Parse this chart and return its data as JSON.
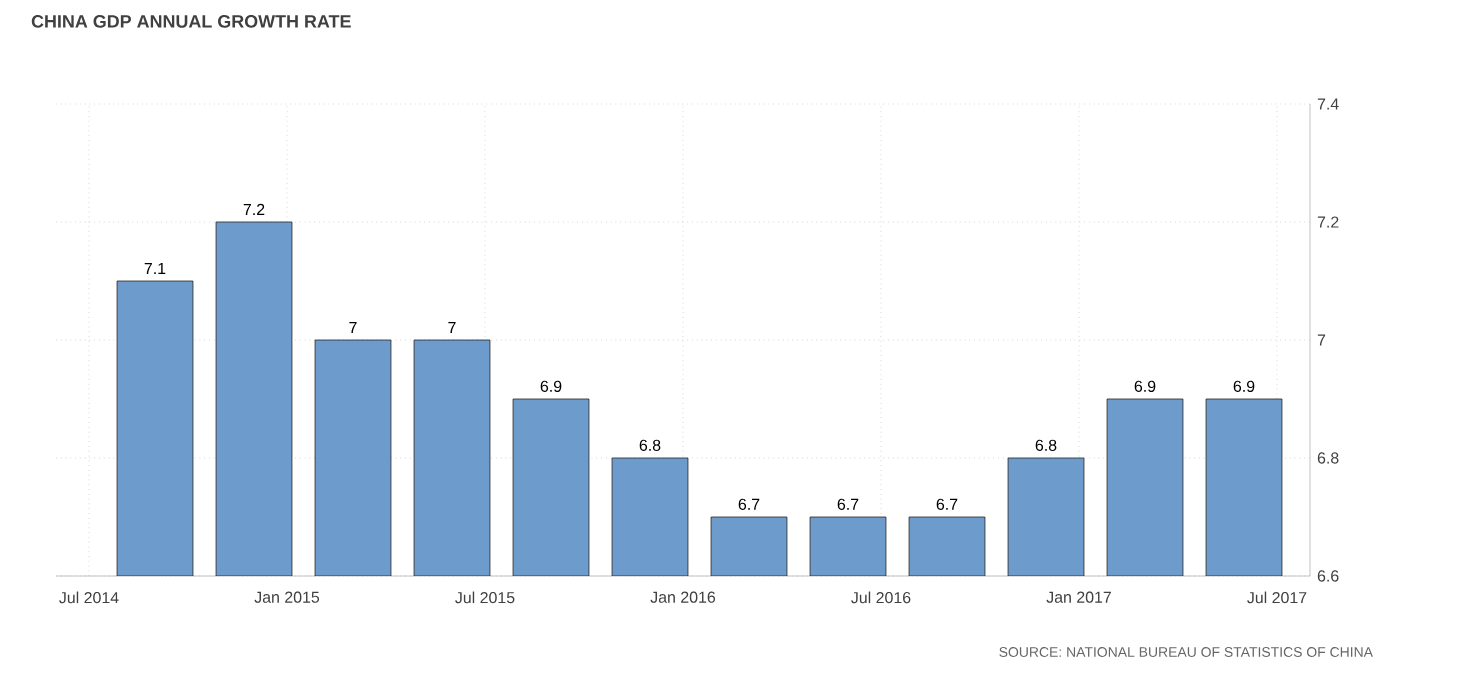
{
  "chart_data": {
    "type": "bar",
    "title": "CHINA GDP ANNUAL GROWTH RATE",
    "x": [
      "2014-09",
      "2014-12",
      "2015-03",
      "2015-06",
      "2015-09",
      "2015-12",
      "2016-03",
      "2016-06",
      "2016-09",
      "2016-12",
      "2017-03",
      "2017-06"
    ],
    "values": [
      7.1,
      7.2,
      7.0,
      7.0,
      6.9,
      6.8,
      6.7,
      6.7,
      6.7,
      6.8,
      6.9,
      6.9
    ],
    "color": "#6d9bcb",
    "xlim": [
      "2014-06",
      "2017-08"
    ],
    "xticks": [
      {
        "value": "2014-07",
        "label": "Jul 2014"
      },
      {
        "value": "2015-01",
        "label": "Jan 2015"
      },
      {
        "value": "2015-07",
        "label": "Jul 2015"
      },
      {
        "value": "2016-01",
        "label": "Jan 2016"
      },
      {
        "value": "2016-07",
        "label": "Jul 2016"
      },
      {
        "value": "2017-01",
        "label": "Jan 2017"
      },
      {
        "value": "2017-07",
        "label": "Jul 2017"
      }
    ],
    "ylim": [
      6.6,
      7.4
    ],
    "yticks": [
      6.6,
      6.8,
      7,
      7.2,
      7.4
    ],
    "grid": true,
    "value_labels": [
      "7.1",
      "7.2",
      "7",
      "7",
      "6.9",
      "6.8",
      "6.7",
      "6.7",
      "6.7",
      "6.8",
      "6.9",
      "6.9"
    ],
    "annotations": [
      "SOURCE: NATIONAL BUREAU OF STATISTICS OF CHINA"
    ]
  }
}
